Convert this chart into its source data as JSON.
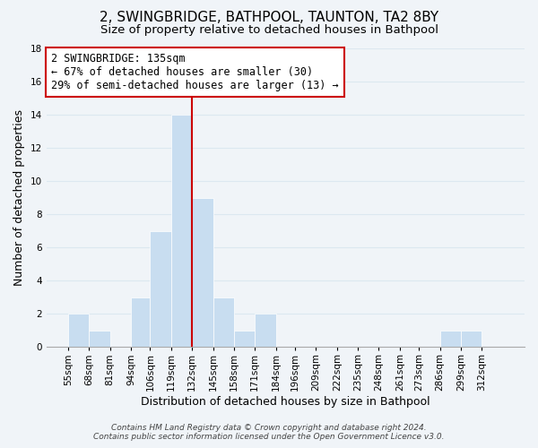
{
  "title": "2, SWINGBRIDGE, BATHPOOL, TAUNTON, TA2 8BY",
  "subtitle": "Size of property relative to detached houses in Bathpool",
  "xlabel": "Distribution of detached houses by size in Bathpool",
  "ylabel": "Number of detached properties",
  "bin_edges": [
    55,
    68,
    81,
    94,
    106,
    119,
    132,
    145,
    158,
    171,
    184,
    196,
    209,
    222,
    235,
    248,
    261,
    273,
    286,
    299,
    312
  ],
  "bin_labels": [
    "55sqm",
    "68sqm",
    "81sqm",
    "94sqm",
    "106sqm",
    "119sqm",
    "132sqm",
    "145sqm",
    "158sqm",
    "171sqm",
    "184sqm",
    "196sqm",
    "209sqm",
    "222sqm",
    "235sqm",
    "248sqm",
    "261sqm",
    "273sqm",
    "286sqm",
    "299sqm",
    "312sqm"
  ],
  "counts": [
    2,
    1,
    0,
    3,
    7,
    14,
    9,
    3,
    1,
    2,
    0,
    0,
    0,
    0,
    0,
    0,
    0,
    0,
    1,
    1,
    0
  ],
  "bar_color": "#c8ddf0",
  "bar_edge_color": "#ffffff",
  "reference_line_x": 132,
  "reference_line_color": "#cc0000",
  "annotation_line1": "2 SWINGBRIDGE: 135sqm",
  "annotation_line2": "← 67% of detached houses are smaller (30)",
  "annotation_line3": "29% of semi-detached houses are larger (13) →",
  "annotation_box_color": "#ffffff",
  "annotation_box_edge_color": "#cc0000",
  "ylim": [
    0,
    18
  ],
  "yticks": [
    0,
    2,
    4,
    6,
    8,
    10,
    12,
    14,
    16,
    18
  ],
  "grid_color": "#dce8f0",
  "background_color": "#f0f4f8",
  "footer_line1": "Contains HM Land Registry data © Crown copyright and database right 2024.",
  "footer_line2": "Contains public sector information licensed under the Open Government Licence v3.0.",
  "title_fontsize": 11,
  "subtitle_fontsize": 9.5,
  "axis_label_fontsize": 9,
  "tick_fontsize": 7.5,
  "annotation_fontsize": 8.5,
  "footer_fontsize": 6.5
}
